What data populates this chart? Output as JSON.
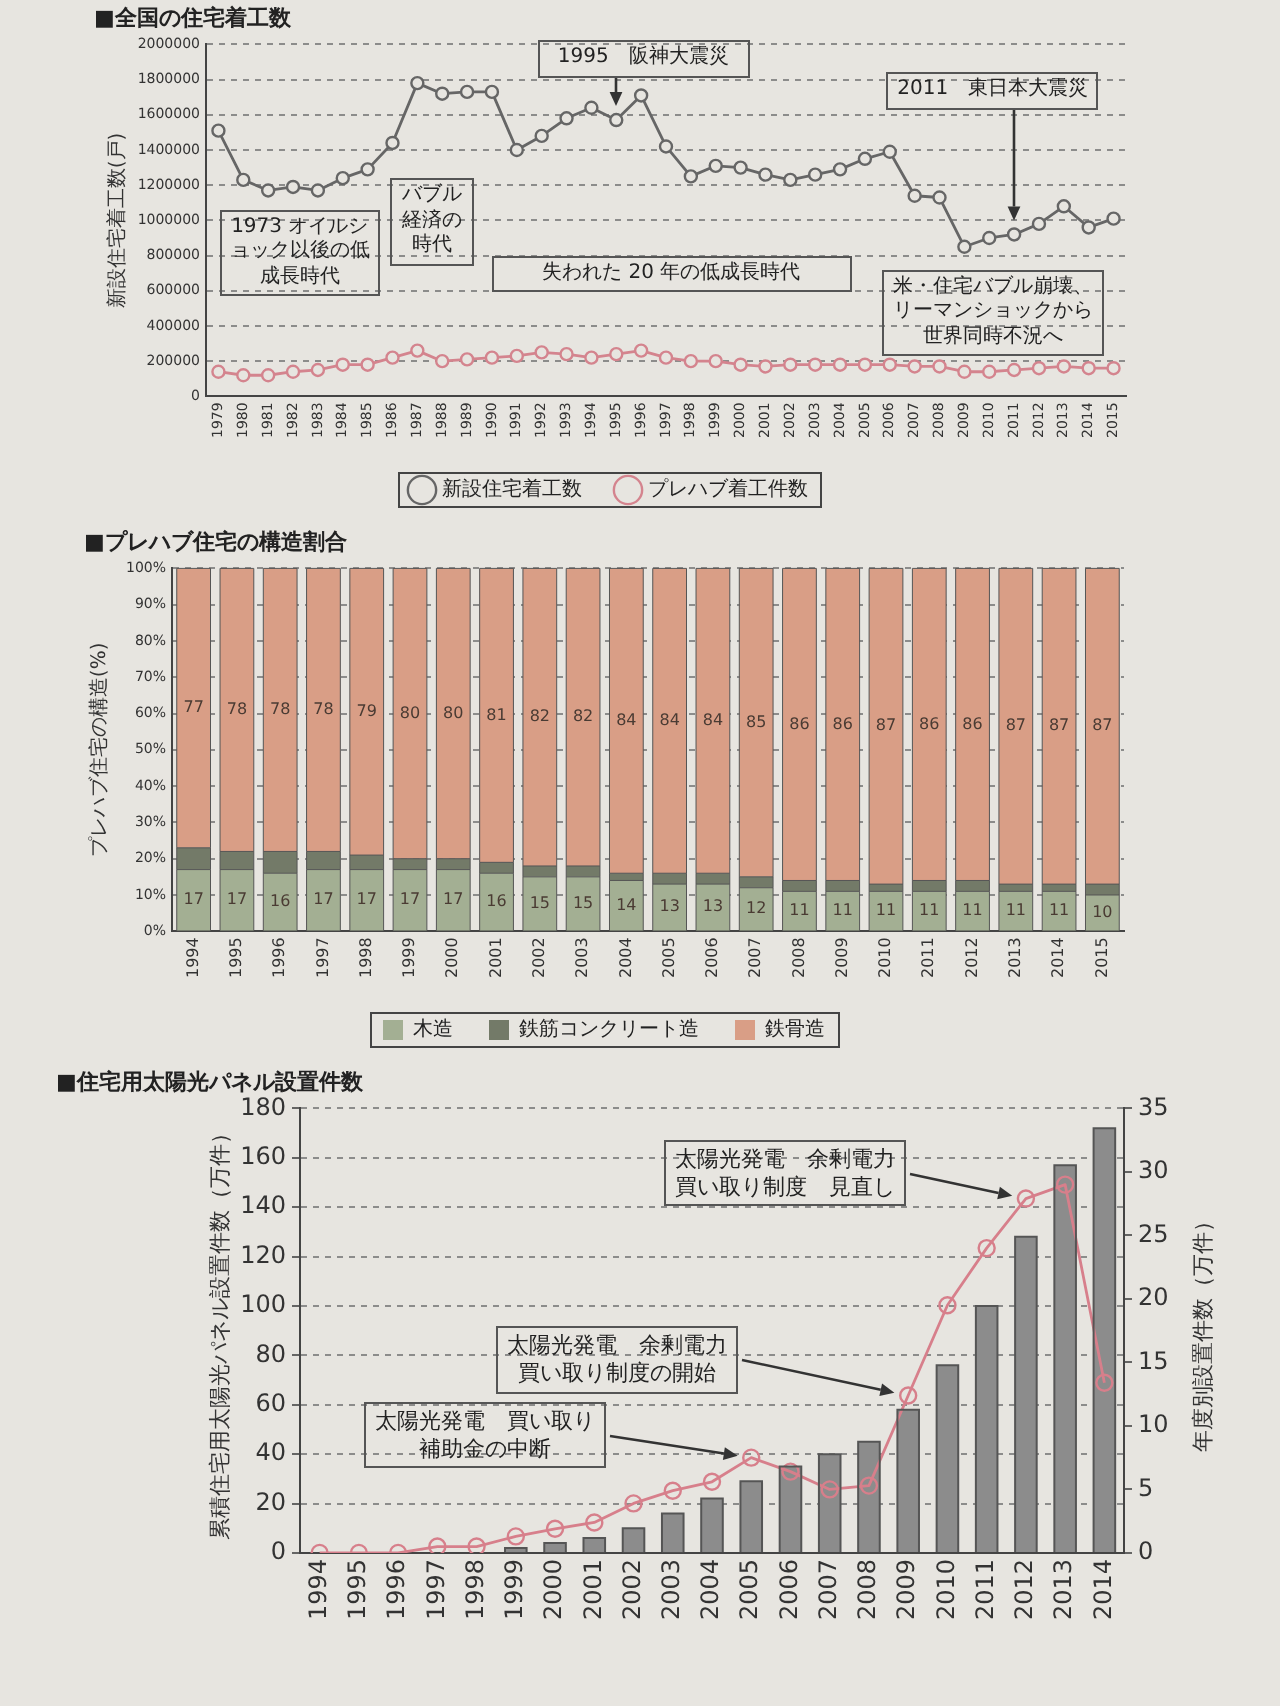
{
  "chart_data": [
    {
      "type": "line",
      "title": "■全国の住宅着工数",
      "ylabel": "新設住宅着工数(戸)",
      "categories": [
        "1979",
        "1980",
        "1981",
        "1982",
        "1983",
        "1984",
        "1985",
        "1986",
        "1987",
        "1988",
        "1989",
        "1990",
        "1991",
        "1992",
        "1993",
        "1994",
        "1995",
        "1996",
        "1997",
        "1998",
        "1999",
        "2000",
        "2001",
        "2002",
        "2003",
        "2004",
        "2005",
        "2006",
        "2007",
        "2008",
        "2009",
        "2010",
        "2011",
        "2012",
        "2013",
        "2014",
        "2015"
      ],
      "series": [
        {
          "name": "新設住宅着工数",
          "color": "#666666",
          "values": [
            1510000,
            1230000,
            1170000,
            1190000,
            1170000,
            1240000,
            1290000,
            1440000,
            1780000,
            1720000,
            1730000,
            1730000,
            1400000,
            1480000,
            1580000,
            1640000,
            1570000,
            1710000,
            1420000,
            1250000,
            1310000,
            1300000,
            1260000,
            1230000,
            1260000,
            1290000,
            1350000,
            1390000,
            1140000,
            1130000,
            850000,
            900000,
            920000,
            980000,
            1080000,
            960000,
            1010000
          ]
        },
        {
          "name": "プレハブ着工件数",
          "color": "#d4848e",
          "values": [
            140000,
            120000,
            120000,
            140000,
            150000,
            180000,
            180000,
            220000,
            260000,
            200000,
            210000,
            220000,
            230000,
            250000,
            240000,
            220000,
            240000,
            260000,
            220000,
            200000,
            200000,
            180000,
            170000,
            180000,
            180000,
            180000,
            180000,
            180000,
            170000,
            170000,
            140000,
            140000,
            150000,
            160000,
            170000,
            160000,
            160000
          ]
        }
      ],
      "ylim": [
        0,
        2000000
      ],
      "yticks": [
        0,
        200000,
        400000,
        600000,
        800000,
        1000000,
        1200000,
        1400000,
        1600000,
        1800000,
        2000000
      ],
      "grid": "y",
      "legend": "bottom",
      "marker": "circle",
      "annotations": [
        "1995　阪神大震災",
        "2011　東日本大震災",
        "1973 オイルショック以後の低成長時代",
        "バブル経済の時代",
        "失われた 20 年の低成長時代",
        "米・住宅バブル崩壊、リーマンショックから世界同時不況へ"
      ]
    },
    {
      "type": "bar",
      "stacked": true,
      "title": "■プレハブ住宅の構造割合",
      "ylabel": "プレハブ住宅の構造(%)",
      "categories": [
        "1994",
        "1995",
        "1996",
        "1997",
        "1998",
        "1999",
        "2000",
        "2001",
        "2002",
        "2003",
        "2004",
        "2005",
        "2006",
        "2007",
        "2008",
        "2009",
        "2010",
        "2011",
        "2012",
        "2013",
        "2014",
        "2015"
      ],
      "series": [
        {
          "name": "木造",
          "color": "#a3af93",
          "values": [
            17,
            17,
            16,
            17,
            17,
            17,
            17,
            16,
            15,
            15,
            14,
            13,
            13,
            12,
            11,
            11,
            11,
            11,
            11,
            11,
            11,
            10
          ],
          "value_labels": [
            "17",
            "17",
            "16",
            "17",
            "17",
            "17",
            "17",
            "16",
            "15",
            "15",
            "14",
            "13",
            "13",
            "12",
            "11",
            "11",
            "11",
            "11",
            "11",
            "11",
            "11",
            "10"
          ]
        },
        {
          "name": "鉄筋コンクリート造",
          "color": "#737a68",
          "values": [
            6,
            5,
            6,
            5,
            4,
            3,
            3,
            3,
            3,
            3,
            2,
            3,
            3,
            3,
            3,
            3,
            2,
            3,
            3,
            2,
            2,
            3
          ]
        },
        {
          "name": "鉄骨造",
          "color": "#d99e86",
          "values": [
            77,
            78,
            78,
            78,
            79,
            80,
            80,
            81,
            82,
            82,
            84,
            84,
            84,
            85,
            86,
            86,
            87,
            86,
            86,
            87,
            87,
            87
          ],
          "value_labels": [
            "77",
            "78",
            "78",
            "78",
            "79",
            "80",
            "80",
            "81",
            "82",
            "82",
            "84",
            "84",
            "84",
            "85",
            "86",
            "86",
            "87",
            "86",
            "86",
            "87",
            "87",
            "87"
          ]
        }
      ],
      "ylim": [
        0,
        100
      ],
      "yticks": [
        {
          "value": 0,
          "label": "0%"
        },
        {
          "value": 10,
          "label": "10%"
        },
        {
          "value": 20,
          "label": "20%"
        },
        {
          "value": 30,
          "label": "30%"
        },
        {
          "value": 40,
          "label": "40%"
        },
        {
          "value": 50,
          "label": "50%"
        },
        {
          "value": 60,
          "label": "60%"
        },
        {
          "value": 70,
          "label": "70%"
        },
        {
          "value": 80,
          "label": "80%"
        },
        {
          "value": 90,
          "label": "90%"
        },
        {
          "value": 100,
          "label": "100%"
        }
      ],
      "grid": "y",
      "legend": "bottom"
    },
    {
      "type": "bar",
      "title": "■住宅用太陽光パネル設置件数",
      "ylabel": "累積住宅用太陽光パネル設置件数（万件）",
      "y2label": "年度別設置件数（万件）",
      "categories": [
        "1994",
        "1995",
        "1996",
        "1997",
        "1998",
        "1999",
        "2000",
        "2001",
        "2002",
        "2003",
        "2004",
        "2005",
        "2006",
        "2007",
        "2008",
        "2009",
        "2010",
        "2011",
        "2012",
        "2013",
        "2014"
      ],
      "series": [
        {
          "color": "#8c8c8c",
          "values": [
            null,
            null,
            null,
            null,
            null,
            2,
            4,
            6,
            10,
            16,
            22,
            29,
            35,
            40,
            45,
            58,
            76,
            100,
            128,
            157,
            172
          ]
        },
        {
          "type": "line",
          "axis": "y2",
          "color": "#d77f8b",
          "values": [
            0,
            0,
            0,
            0.5,
            0.5,
            1.3,
            1.9,
            2.4,
            3.9,
            4.9,
            5.6,
            7.5,
            6.4,
            5,
            5.3,
            12.4,
            19.5,
            24,
            27.9,
            29,
            13.4
          ]
        }
      ],
      "ylim": [
        0,
        180
      ],
      "yticks": [
        0,
        20,
        40,
        60,
        80,
        100,
        120,
        140,
        160,
        180
      ],
      "y2lim": [
        0,
        35
      ],
      "y2ticks": [
        0,
        5,
        10,
        15,
        20,
        25,
        30,
        35
      ],
      "grid": "y",
      "marker": "circle",
      "annotations": [
        "太陽光発電　買い取り補助金の中断",
        "太陽光発電　余剰電力買い取り制度の開始",
        "太陽光発電　余剰電力買い取り制度　見直し"
      ]
    }
  ]
}
